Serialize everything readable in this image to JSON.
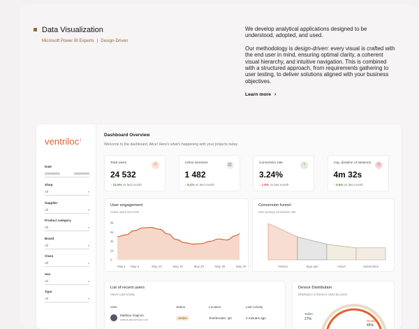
{
  "hero": {
    "title": "Data Visualization",
    "tag1": "Microsoft Power BI Experts",
    "tag_sep": "|",
    "tag2": "Design-Driven",
    "para1": "We develop analytical applications designed to be understood, adopted, and used.",
    "para2_pre": "Our methodology is ",
    "para2_em": "design-driven",
    "para2_post": ": every visual is crafted with the end user in mind, ensuring optimal clarity, a coherent visual hierarchy, and intuitive navigation. This is combined with a structured approach, from requirements gathering to user testing, to deliver solutions aligned with your business objectives.",
    "learn_more": "Learn more",
    "learn_more_icon": "chevron-right-icon"
  },
  "sidebar": {
    "logo": "ventriloc",
    "logo_mark": "⁽",
    "date_label": "Date",
    "date_from": "2025/06/01",
    "date_to": "2025/06/30",
    "filters": [
      {
        "label": "Shop",
        "value": "All"
      },
      {
        "label": "Supplier",
        "value": "All"
      },
      {
        "label": "Product category",
        "value": "All"
      },
      {
        "label": "Brand",
        "value": "All"
      },
      {
        "label": "Class",
        "value": "All"
      },
      {
        "label": "Sex",
        "value": "All"
      },
      {
        "label": "Type",
        "value": "All"
      }
    ]
  },
  "dashboard": {
    "title": "Dashboard Overview",
    "welcome": "Welcome to the dashboard, Alice! Here's what's happening with your projects today."
  },
  "kpis": [
    {
      "title": "Total users",
      "value": "24 532",
      "delta": "12.5%",
      "dir": "up",
      "note": "vs last month",
      "icon": "user-icon",
      "accent": "#e0602f"
    },
    {
      "title": "Active sessions",
      "value": "1 482",
      "delta": "8.2%",
      "dir": "up",
      "note": "vs last month",
      "icon": "bar-chart-icon",
      "accent": "#888888"
    },
    {
      "title": "Conversion rate",
      "value": "3.24%",
      "delta": "1.8%",
      "dir": "down",
      "note": "vs last month",
      "icon": "pie-icon",
      "accent": "#4a8a3a"
    },
    {
      "title": "Avg. duration of sessions",
      "value": "4m 32s",
      "delta": "0.5%",
      "dir": "up",
      "note": "vs last month",
      "icon": "clock-icon",
      "accent": "#c94a4a"
    }
  ],
  "engagement": {
    "title": "User engagement",
    "subtitle": "Active users over time"
  },
  "funnel": {
    "title": "Conversion funnel",
    "subtitle": "User journey conversion rate"
  },
  "recent": {
    "title": "List of recent users",
    "subtitle": "Users' Last Activity",
    "headers": [
      "User",
      "Status",
      "Location",
      "Last Activity"
    ],
    "row": {
      "name": "Mathieu Gagnon",
      "email": "mathieu@exemple.com",
      "status": "Active",
      "location": "Sherbrooke, QC",
      "last": "2 minutes ago"
    }
  },
  "devices": {
    "title": "Device Distribution",
    "subtitle": "Distribution of Devices Used by Users",
    "tablet_label": "Tablet",
    "tablet_value": "27%",
    "desktop_label": "Desktop",
    "desktop_value": "45%"
  },
  "chart_data": [
    {
      "type": "area",
      "title": "User engagement",
      "subtitle": "Active users over time",
      "categories": [
        "May 1",
        "May 5",
        "May 10",
        "May 15",
        "May 20",
        "May 25",
        "May 30"
      ],
      "y_ticks": [
        "0",
        "2k",
        "4k",
        "6k",
        "8k"
      ],
      "ylim": [
        0,
        8000
      ],
      "x": [
        0,
        2,
        4,
        6,
        8,
        10,
        12,
        14,
        16,
        18,
        20,
        22,
        24,
        26,
        28,
        29
      ],
      "values": [
        5000,
        5400,
        6300,
        6900,
        7000,
        6600,
        5600,
        4400,
        3700,
        3400,
        3500,
        4000,
        4500,
        4300,
        5200,
        5600
      ],
      "color": "#e0602f"
    },
    {
      "type": "area",
      "title": "Conversion funnel",
      "subtitle": "User journey conversion rate",
      "categories": [
        "Visitors",
        "Sign-ups",
        "Active",
        "Subscribed"
      ],
      "values": [
        100,
        63,
        43,
        33
      ],
      "colors": [
        "#f7ddd2",
        "#e6e6e6",
        "#f1ede0",
        "#f3ece5"
      ]
    }
  ]
}
